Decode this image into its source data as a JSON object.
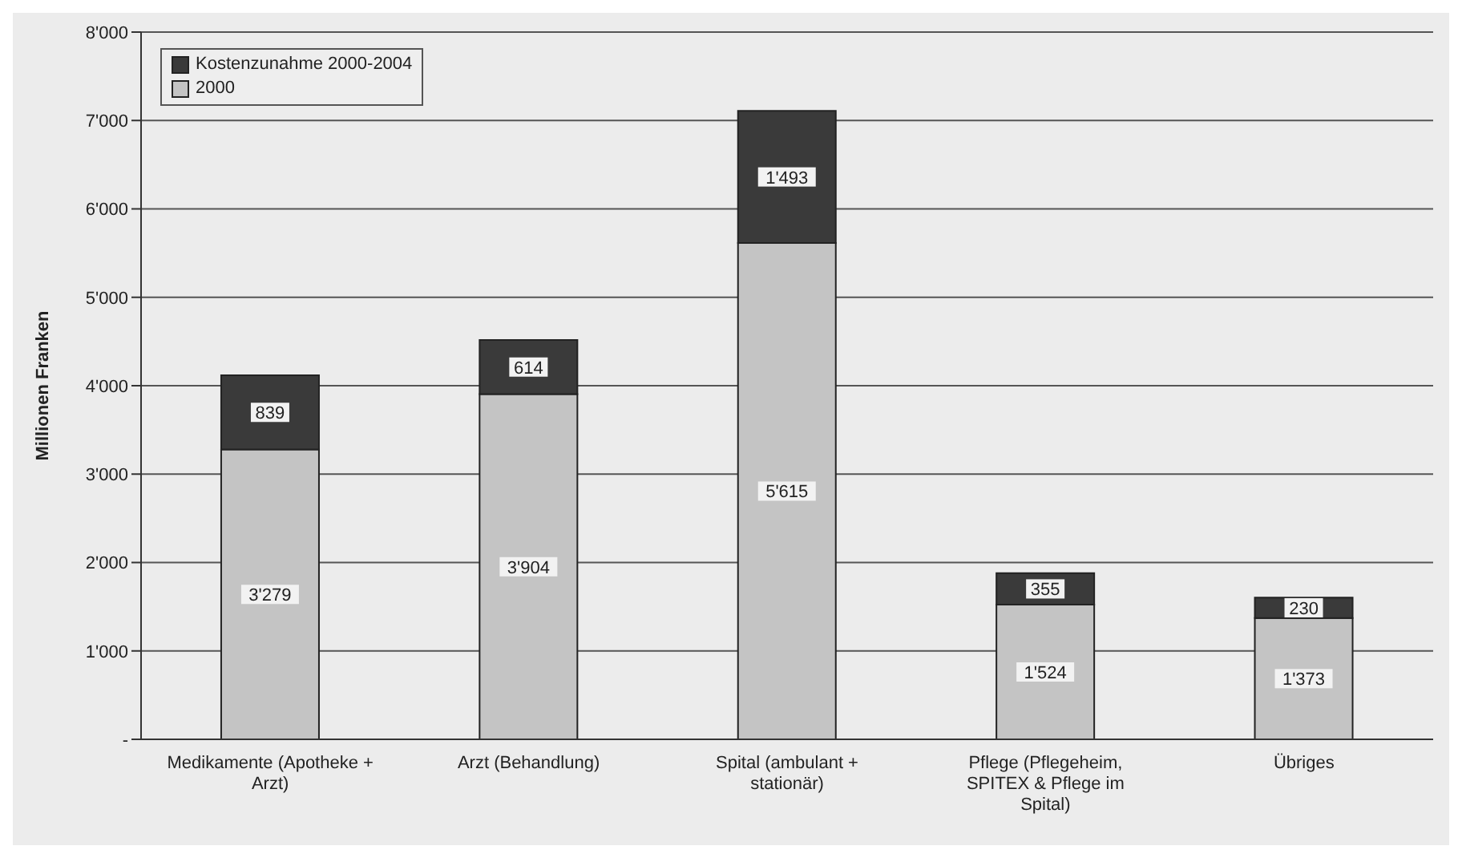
{
  "chart_data": {
    "type": "bar",
    "stacked": true,
    "ylabel": "Millionen Franken",
    "categories": [
      "Medikamente (Apotheke + Arzt)",
      "Arzt (Behandlung)",
      "Spital (ambulant + stationär)",
      "Pflege (Pflegeheim, SPITEX & Pflege im Spital)",
      "Übriges"
    ],
    "series": [
      {
        "name": "2000",
        "color": "#c4c4c4",
        "values": [
          3279,
          3904,
          5615,
          1524,
          1373
        ],
        "value_labels": [
          "3'279",
          "3'904",
          "5'615",
          "1'524",
          "1'373"
        ]
      },
      {
        "name": "Kostenzunahme 2000-2004",
        "color": "#3a3a3a",
        "values": [
          839,
          614,
          1493,
          355,
          230
        ],
        "value_labels": [
          "839",
          "614",
          "1'493",
          "355",
          "230"
        ]
      }
    ],
    "ylim": [
      0,
      8000
    ],
    "yticks": [
      {
        "value": 0,
        "label": "-"
      },
      {
        "value": 1000,
        "label": "1'000"
      },
      {
        "value": 2000,
        "label": "2'000"
      },
      {
        "value": 3000,
        "label": "3'000"
      },
      {
        "value": 4000,
        "label": "4'000"
      },
      {
        "value": 5000,
        "label": "5'000"
      },
      {
        "value": 6000,
        "label": "6'000"
      },
      {
        "value": 7000,
        "label": "7'000"
      },
      {
        "value": 8000,
        "label": "8'000"
      }
    ],
    "grid": "y",
    "legend": "top left"
  }
}
